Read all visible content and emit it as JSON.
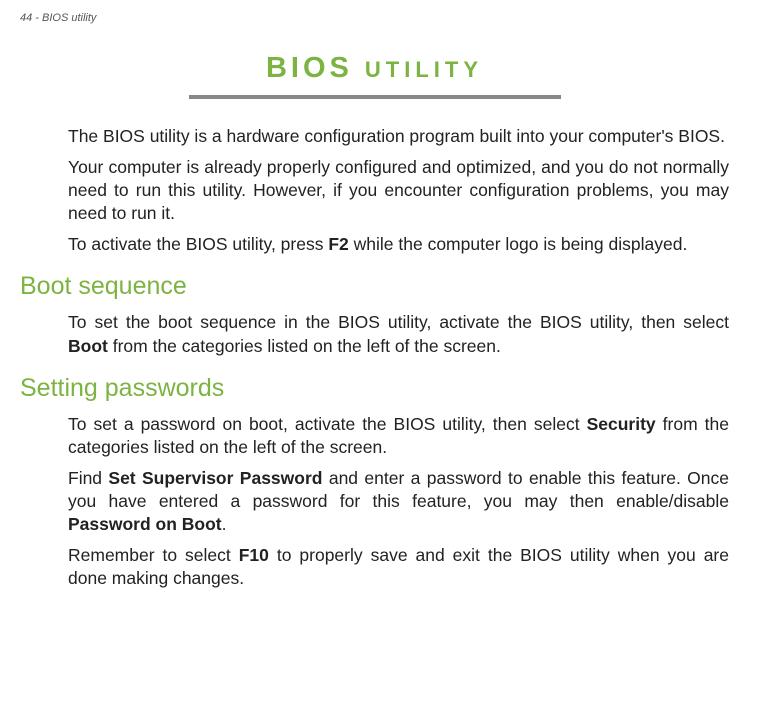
{
  "page_header": "44 - BIOS utility",
  "title_big": "BIOS",
  "title_small": "UTILITY",
  "paragraphs": {
    "intro1": "The BIOS utility is a hardware configuration program built into your computer's BIOS.",
    "intro2": "Your computer is already properly configured and optimized, and you do not normally need to run this utility. However, if you encounter configuration problems, you may need to run it.",
    "intro3_a": "To activate the BIOS utility, press ",
    "intro3_bold": "F2",
    "intro3_b": " while the computer logo is being displayed."
  },
  "section1": {
    "heading": "Boot sequence",
    "p1_a": "To set the boot sequence in the BIOS utility, activate the BIOS utility, then select ",
    "p1_bold": "Boot",
    "p1_b": " from the categories listed on the left of the screen."
  },
  "section2": {
    "heading": "Setting passwords",
    "p1_a": "To set a password on boot, activate the BIOS utility, then select ",
    "p1_bold": "Security",
    "p1_b": " from the categories listed on the left of the screen.",
    "p2_a": "Find ",
    "p2_bold1": "Set Supervisor Password",
    "p2_b": " and enter a password to enable this feature. Once you have entered a password for this feature, you may then enable/disable ",
    "p2_bold2": "Password on Boot",
    "p2_c": ".",
    "p3_a": "Remember to select ",
    "p3_bold": "F10",
    "p3_b": " to properly save and exit the BIOS utility when you are done making changes."
  },
  "colors": {
    "accent": "#7cb342",
    "underline": "#888888",
    "text": "#222222",
    "header_text": "#555555"
  }
}
